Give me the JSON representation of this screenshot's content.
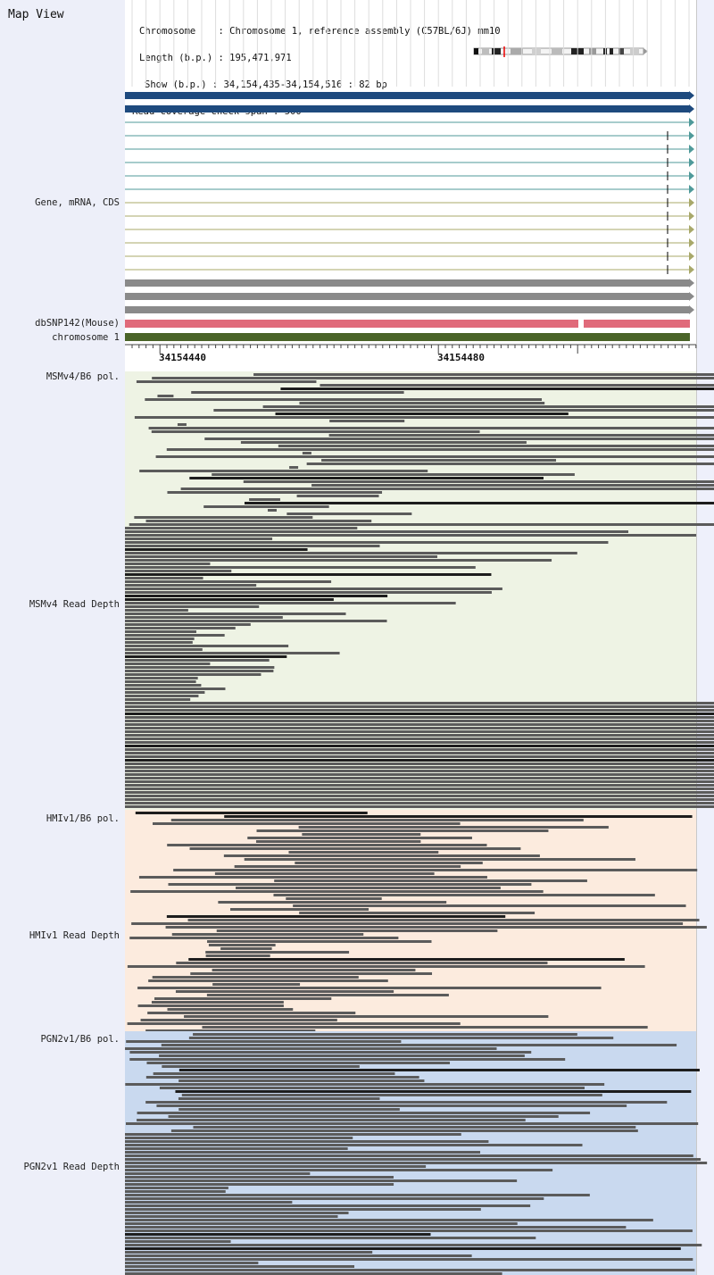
{
  "map_title": "Map View",
  "info": {
    "chromosome_label": "Chromosome",
    "chromosome_value": "Chromosome 1, reference assembly (C57BL/6J) mm10",
    "length_label": "Length (b.p.)",
    "length_value": "195,471,971",
    "show_label": "Show (b.p.)",
    "show_value": "34,154,435-34,154,516 : 82 bp",
    "span_label": "Read coverage check span",
    "span_value": "500"
  },
  "tracks": {
    "gene": "Gene, mRNA, CDS",
    "snp": "dbSNP142(Mouse)",
    "chromosome": "chromosome 1",
    "msm_pol": "MSMv4/B6 pol.",
    "msm_depth": "MSMv4 Read Depth",
    "hmi_pol": "HMIv1/B6 pol.",
    "hmi_depth": "HMIv1 Read Depth",
    "pgn_pol": "PGN2v1/B6 pol.",
    "pgn_depth": "PGN2v1 Read Depth"
  },
  "ruler": {
    "ticks": [
      "34154440",
      "34154480"
    ]
  },
  "colors": {
    "gene_bar": "#1e4a7e",
    "mrna_teal": "#4f9a9a",
    "mrna_olive": "#a8a86a",
    "cds_gray": "#8a8a8a",
    "snp_pink": "#e06a7a",
    "chromosome_green": "#4a6428",
    "msm_bg": "#eef3e4",
    "hmi_bg": "#fcebde",
    "pgn_bg": "#c9d9ef",
    "read_gray": "#5b5b5b",
    "read_dark": "#1d1d1d"
  }
}
